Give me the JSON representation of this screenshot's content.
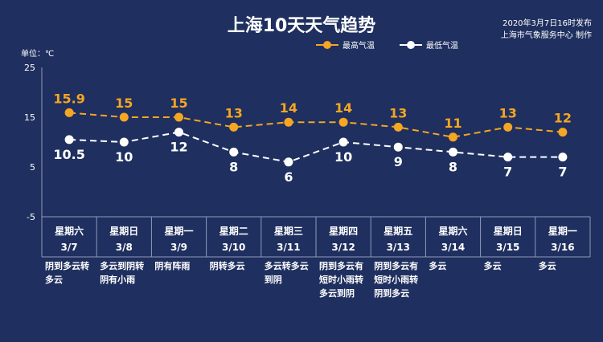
{
  "title": "上海10天天气趋势",
  "publish_time": "2020年3月7日16时发布",
  "publisher": "上海市气象服务中心 制作",
  "unit_label": "单位：℃",
  "legend": {
    "high": "最高气温",
    "low": "最低气温"
  },
  "colors": {
    "background": "#1f2f5f",
    "high": "#f5a623",
    "low": "#ffffff",
    "grid": "#8f9bbb"
  },
  "chart_data": {
    "type": "line",
    "title": "上海10天天气趋势",
    "ylabel": "单位：℃",
    "ylim": [
      -5,
      25
    ],
    "yticks": [
      25,
      15,
      5,
      -5
    ],
    "grid": false,
    "legend_position": "top-right",
    "categories": [
      {
        "weekday": "星期六",
        "date": "3/7"
      },
      {
        "weekday": "星期日",
        "date": "3/8"
      },
      {
        "weekday": "星期一",
        "date": "3/9"
      },
      {
        "weekday": "星期二",
        "date": "3/10"
      },
      {
        "weekday": "星期三",
        "date": "3/11"
      },
      {
        "weekday": "星期四",
        "date": "3/12"
      },
      {
        "weekday": "星期五",
        "date": "3/13"
      },
      {
        "weekday": "星期六",
        "date": "3/14"
      },
      {
        "weekday": "星期日",
        "date": "3/15"
      },
      {
        "weekday": "星期一",
        "date": "3/16"
      }
    ],
    "series": [
      {
        "name": "最高气温",
        "values": [
          15.9,
          15,
          15,
          13,
          14,
          14,
          13,
          11,
          13,
          12
        ]
      },
      {
        "name": "最低气温",
        "values": [
          10.5,
          10,
          12,
          8,
          6,
          10,
          9,
          8,
          7,
          7
        ]
      }
    ]
  },
  "weather": [
    [
      "阴到多云转",
      "多云"
    ],
    [
      "多云到阴转",
      "阴有小雨"
    ],
    [
      "阴有阵雨"
    ],
    [
      "阴转多云"
    ],
    [
      "多云转多云",
      "到阴"
    ],
    [
      "阴到多云有",
      "短时小雨转",
      "多云到阴"
    ],
    [
      "阴到多云有",
      "短时小雨转",
      "阴到多云"
    ],
    [
      "多云"
    ],
    [
      "多云"
    ],
    [
      "多云"
    ]
  ]
}
